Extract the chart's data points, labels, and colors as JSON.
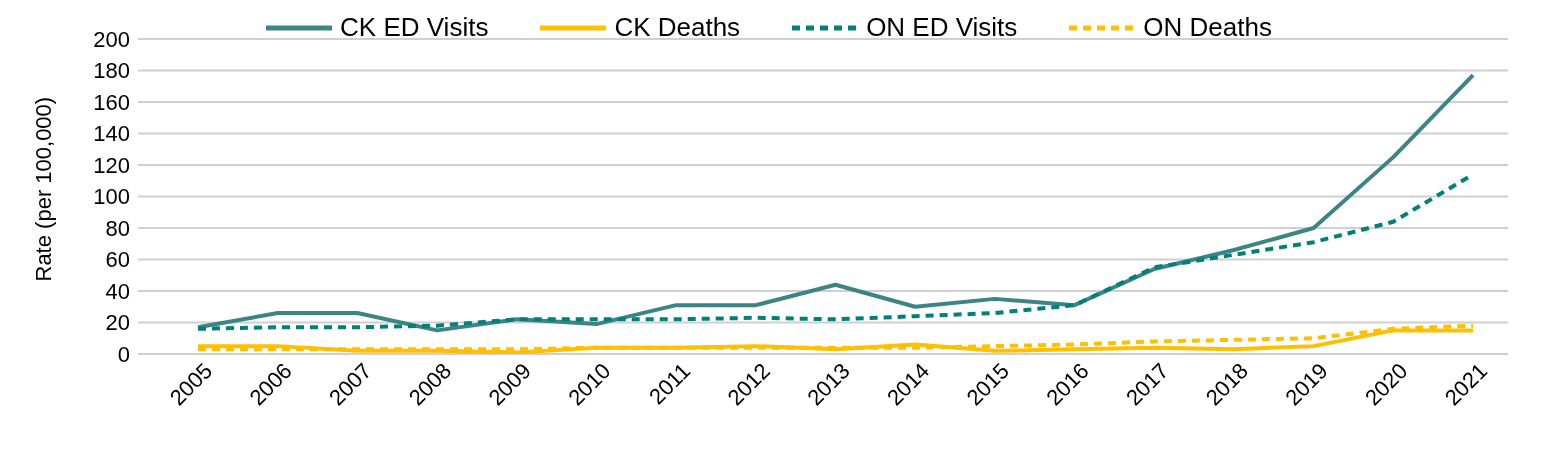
{
  "chart_data": {
    "type": "line",
    "ylabel": "Rate (per 100,000)",
    "categories": [
      "2005",
      "2006",
      "2007",
      "2008",
      "2009",
      "2010",
      "2011",
      "2012",
      "2013",
      "2014",
      "2015",
      "2016",
      "2017",
      "2018",
      "2019",
      "2020",
      "2021"
    ],
    "series": [
      {
        "name": "CK ED Visits",
        "color": "#3d8585",
        "line_style": "solid",
        "values": [
          17,
          26,
          26,
          15,
          22,
          19,
          31,
          31,
          44,
          30,
          35,
          31,
          54,
          66,
          80,
          125,
          177
        ]
      },
      {
        "name": "CK Deaths",
        "color": "#ffc000",
        "line_style": "solid",
        "values": [
          5,
          5,
          2,
          2,
          1,
          4,
          4,
          5,
          3,
          6,
          2,
          3,
          4,
          3,
          5,
          15,
          15
        ]
      },
      {
        "name": "ON ED Visits",
        "color": "#00807a",
        "line_style": "dashed",
        "values": [
          16,
          17,
          17,
          18,
          22,
          22,
          22,
          23,
          22,
          24,
          26,
          31,
          55,
          63,
          71,
          84,
          114
        ]
      },
      {
        "name": "ON Deaths",
        "color": "#ffc000",
        "line_style": "dashed",
        "values": [
          3,
          3,
          3,
          3,
          3,
          4,
          4,
          4,
          4,
          4,
          5,
          6,
          8,
          9,
          10,
          16,
          18
        ]
      }
    ],
    "ylim": [
      0,
      200
    ],
    "yticks": [
      0,
      20,
      40,
      60,
      80,
      100,
      120,
      140,
      160,
      180,
      200
    ],
    "grid": "y",
    "legend": "top",
    "marker": "none"
  }
}
